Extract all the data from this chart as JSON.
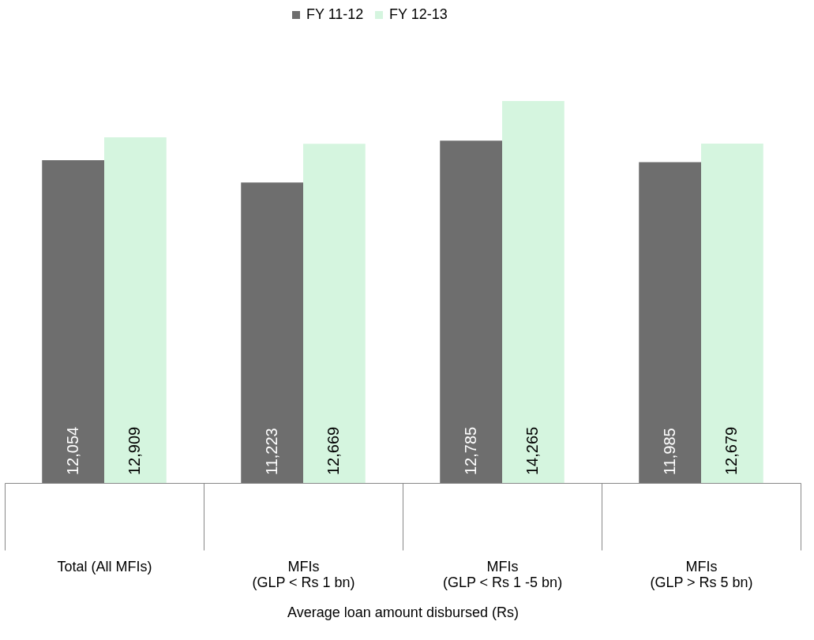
{
  "chart_data": {
    "type": "bar",
    "xlabel": "Average loan amount disbursed (Rs)",
    "categories": [
      "Total (All MFIs)",
      "MFIs\n(GLP < Rs 1 bn)",
      "MFIs\n(GLP < Rs 1 -5 bn)",
      "MFIs\n(GLP > Rs 5 bn)"
    ],
    "series": [
      {
        "name": "FY 11-12",
        "color": "#6e6e6e",
        "values": [
          12054,
          11223,
          12785,
          11985
        ],
        "value_labels": [
          "12,054",
          "11,223",
          "12,785",
          "11,985"
        ]
      },
      {
        "name": "FY 12-13",
        "color": "#d5f5df",
        "values": [
          12909,
          12669,
          14265,
          12679
        ],
        "value_labels": [
          "12,909",
          "12,669",
          "14,265",
          "12,679"
        ]
      }
    ],
    "legend": "top",
    "grid": false
  }
}
